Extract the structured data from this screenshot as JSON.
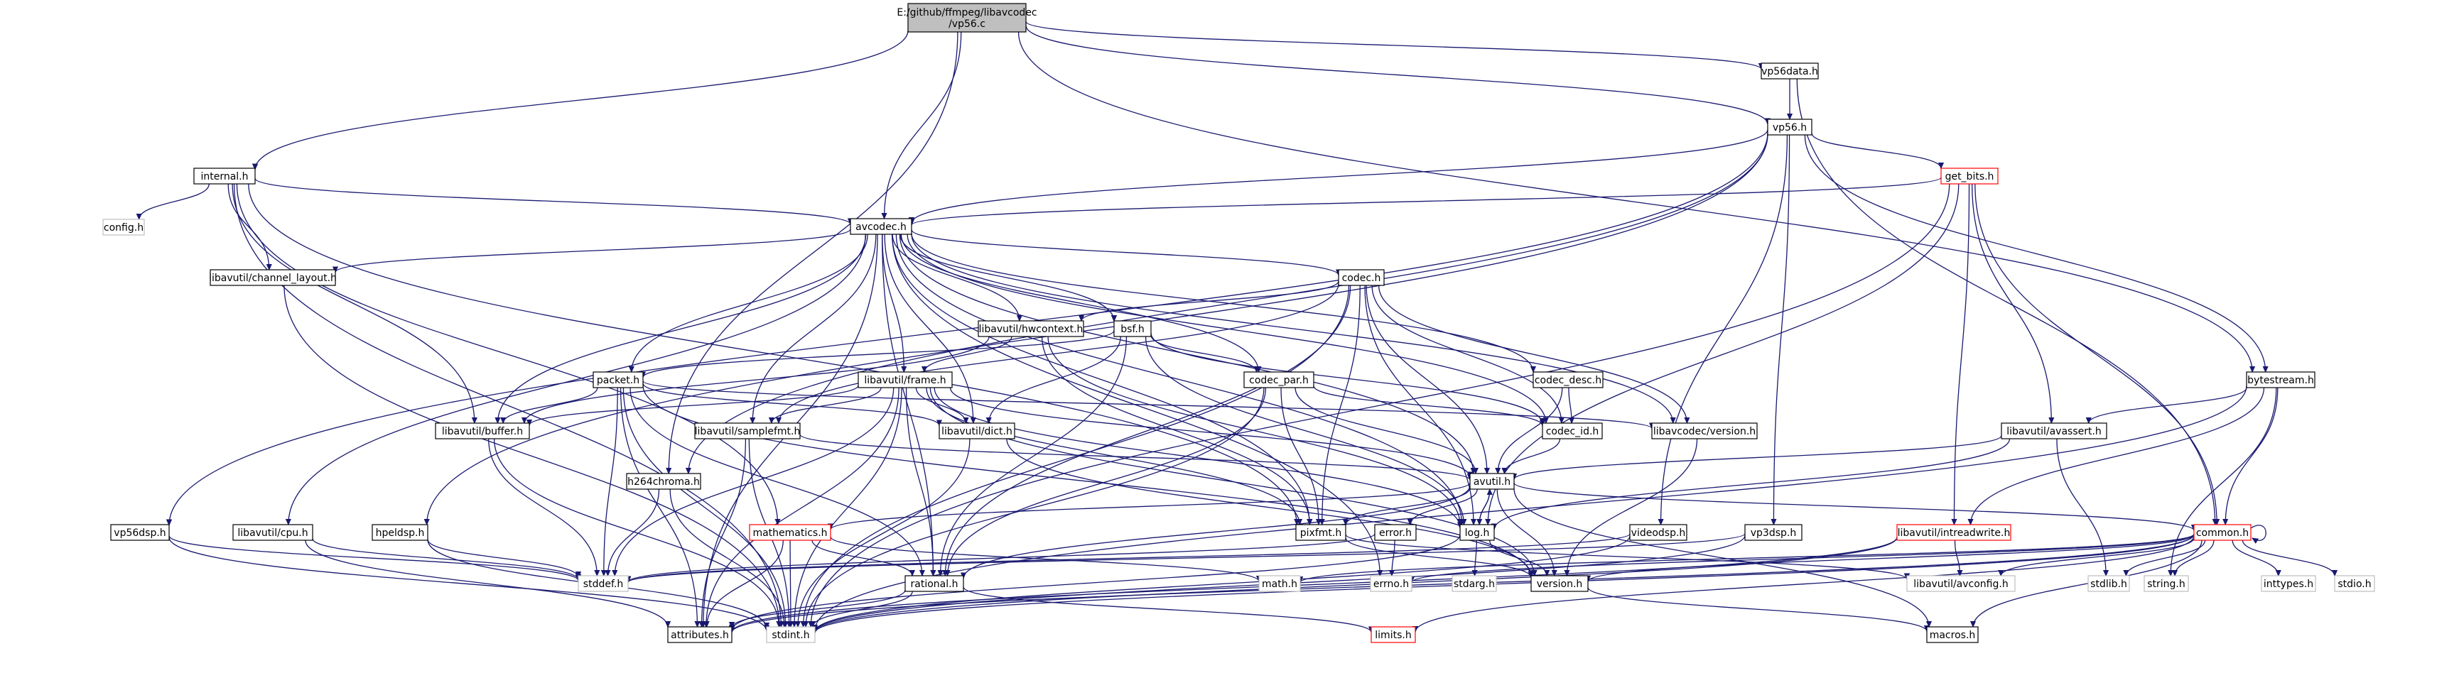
{
  "palette": {
    "edge": "#191970",
    "node_border": "#000000",
    "node_fill": "#ffffff",
    "root_fill": "#bfbfbf",
    "truncated_border": "#ff0000",
    "system_border": "#bfbfbf",
    "text": "#000000"
  },
  "nodes": [
    {
      "id": "root",
      "kind": "root",
      "label": "E:/github/ffmpeg/libavcodec\n/vp56.c"
    },
    {
      "id": "vp56data",
      "kind": "file",
      "label": "vp56data.h"
    },
    {
      "id": "vp56",
      "kind": "file",
      "label": "vp56.h"
    },
    {
      "id": "internal",
      "kind": "file",
      "label": "internal.h"
    },
    {
      "id": "get_bits",
      "kind": "truncated",
      "label": "get_bits.h"
    },
    {
      "id": "config",
      "kind": "system",
      "label": "config.h"
    },
    {
      "id": "avcodec",
      "kind": "file",
      "label": "avcodec.h"
    },
    {
      "id": "channel_layout",
      "kind": "file",
      "label": "libavutil/channel_layout.h"
    },
    {
      "id": "codec",
      "kind": "file",
      "label": "codec.h"
    },
    {
      "id": "hwcontext",
      "kind": "file",
      "label": "libavutil/hwcontext.h"
    },
    {
      "id": "bsf",
      "kind": "file",
      "label": "bsf.h"
    },
    {
      "id": "bytestream",
      "kind": "file",
      "label": "bytestream.h"
    },
    {
      "id": "packet",
      "kind": "file",
      "label": "packet.h"
    },
    {
      "id": "frame",
      "kind": "file",
      "label": "libavutil/frame.h"
    },
    {
      "id": "codec_par",
      "kind": "file",
      "label": "codec_par.h"
    },
    {
      "id": "codec_desc",
      "kind": "file",
      "label": "codec_desc.h"
    },
    {
      "id": "buffer",
      "kind": "file",
      "label": "libavutil/buffer.h"
    },
    {
      "id": "samplefmt",
      "kind": "file",
      "label": "libavutil/samplefmt.h"
    },
    {
      "id": "dict",
      "kind": "file",
      "label": "libavutil/dict.h"
    },
    {
      "id": "codec_id",
      "kind": "file",
      "label": "codec_id.h"
    },
    {
      "id": "version_codec",
      "kind": "file",
      "label": "libavcodec/version.h"
    },
    {
      "id": "avassert",
      "kind": "file",
      "label": "libavutil/avassert.h"
    },
    {
      "id": "h264chroma",
      "kind": "file",
      "label": "h264chroma.h"
    },
    {
      "id": "avutil",
      "kind": "file",
      "label": "avutil.h"
    },
    {
      "id": "vp56dsp",
      "kind": "file",
      "label": "vp56dsp.h"
    },
    {
      "id": "cpu",
      "kind": "file",
      "label": "libavutil/cpu.h"
    },
    {
      "id": "hpeldsp",
      "kind": "file",
      "label": "hpeldsp.h"
    },
    {
      "id": "mathematics",
      "kind": "truncated",
      "label": "mathematics.h"
    },
    {
      "id": "pixfmt",
      "kind": "file",
      "label": "pixfmt.h"
    },
    {
      "id": "error",
      "kind": "file",
      "label": "error.h"
    },
    {
      "id": "log",
      "kind": "file",
      "label": "log.h"
    },
    {
      "id": "videodsp",
      "kind": "file",
      "label": "videodsp.h"
    },
    {
      "id": "vp3dsp",
      "kind": "file",
      "label": "vp3dsp.h"
    },
    {
      "id": "intreadwrite",
      "kind": "truncated",
      "label": "libavutil/intreadwrite.h"
    },
    {
      "id": "common",
      "kind": "truncated",
      "label": "common.h"
    },
    {
      "id": "stddef",
      "kind": "system",
      "label": "stddef.h"
    },
    {
      "id": "rational",
      "kind": "file",
      "label": "rational.h"
    },
    {
      "id": "math",
      "kind": "system",
      "label": "math.h"
    },
    {
      "id": "errno",
      "kind": "system",
      "label": "errno.h"
    },
    {
      "id": "stdarg",
      "kind": "system",
      "label": "stdarg.h"
    },
    {
      "id": "version_util",
      "kind": "file",
      "label": "version.h"
    },
    {
      "id": "avconfig",
      "kind": "system",
      "label": "libavutil/avconfig.h"
    },
    {
      "id": "stdlib",
      "kind": "system",
      "label": "stdlib.h"
    },
    {
      "id": "string",
      "kind": "system",
      "label": "string.h"
    },
    {
      "id": "inttypes",
      "kind": "system",
      "label": "inttypes.h"
    },
    {
      "id": "stdio",
      "kind": "system",
      "label": "stdio.h"
    },
    {
      "id": "attributes",
      "kind": "file",
      "label": "attributes.h"
    },
    {
      "id": "stdint",
      "kind": "system",
      "label": "stdint.h"
    },
    {
      "id": "limits",
      "kind": "truncated",
      "label": "limits.h"
    },
    {
      "id": "macros",
      "kind": "file",
      "label": "macros.h"
    }
  ],
  "edges": [
    [
      "root",
      "internal"
    ],
    [
      "root",
      "avcodec"
    ],
    [
      "root",
      "vp56"
    ],
    [
      "root",
      "vp56data"
    ],
    [
      "root",
      "bytestream"
    ],
    [
      "root",
      "h264chroma"
    ],
    [
      "vp56data",
      "vp56"
    ],
    [
      "vp56data",
      "common"
    ],
    [
      "vp56",
      "avcodec"
    ],
    [
      "vp56",
      "get_bits"
    ],
    [
      "vp56",
      "bytestream"
    ],
    [
      "vp56",
      "hpeldsp"
    ],
    [
      "vp56",
      "vp56dsp"
    ],
    [
      "vp56",
      "h264chroma"
    ],
    [
      "vp56",
      "videodsp"
    ],
    [
      "vp56",
      "vp3dsp"
    ],
    [
      "internal",
      "config"
    ],
    [
      "internal",
      "avcodec"
    ],
    [
      "internal",
      "channel_layout"
    ],
    [
      "internal",
      "buffer"
    ],
    [
      "internal",
      "mathematics"
    ],
    [
      "internal",
      "pixfmt"
    ],
    [
      "internal",
      "stdint"
    ],
    [
      "get_bits",
      "avcodec"
    ],
    [
      "get_bits",
      "common"
    ],
    [
      "get_bits",
      "intreadwrite"
    ],
    [
      "get_bits",
      "avassert"
    ],
    [
      "get_bits",
      "log"
    ],
    [
      "get_bits",
      "stdint"
    ],
    [
      "avcodec",
      "channel_layout"
    ],
    [
      "avcodec",
      "codec"
    ],
    [
      "avcodec",
      "hwcontext"
    ],
    [
      "avcodec",
      "bsf"
    ],
    [
      "avcodec",
      "packet"
    ],
    [
      "avcodec",
      "frame"
    ],
    [
      "avcodec",
      "codec_par"
    ],
    [
      "avcodec",
      "codec_desc"
    ],
    [
      "avcodec",
      "buffer"
    ],
    [
      "avcodec",
      "samplefmt"
    ],
    [
      "avcodec",
      "dict"
    ],
    [
      "avcodec",
      "codec_id"
    ],
    [
      "avcodec",
      "version_codec"
    ],
    [
      "avcodec",
      "avutil"
    ],
    [
      "avcodec",
      "log"
    ],
    [
      "avcodec",
      "pixfmt"
    ],
    [
      "avcodec",
      "rational"
    ],
    [
      "avcodec",
      "attributes"
    ],
    [
      "avcodec",
      "cpu"
    ],
    [
      "avcodec",
      "errno"
    ],
    [
      "channel_layout",
      "stdint"
    ],
    [
      "codec",
      "hwcontext"
    ],
    [
      "codec",
      "codec_id"
    ],
    [
      "codec",
      "version_codec"
    ],
    [
      "codec",
      "avutil"
    ],
    [
      "codec",
      "log"
    ],
    [
      "codec",
      "pixfmt"
    ],
    [
      "codec",
      "rational"
    ],
    [
      "codec",
      "samplefmt"
    ],
    [
      "codec",
      "stdint"
    ],
    [
      "hwcontext",
      "buffer"
    ],
    [
      "hwcontext",
      "frame"
    ],
    [
      "hwcontext",
      "log"
    ],
    [
      "hwcontext",
      "pixfmt"
    ],
    [
      "bsf",
      "packet"
    ],
    [
      "bsf",
      "codec_par"
    ],
    [
      "bsf",
      "codec_id"
    ],
    [
      "bsf",
      "dict"
    ],
    [
      "bsf",
      "log"
    ],
    [
      "bsf",
      "rational"
    ],
    [
      "bytestream",
      "avassert"
    ],
    [
      "bytestream",
      "common"
    ],
    [
      "bytestream",
      "intreadwrite"
    ],
    [
      "bytestream",
      "string"
    ],
    [
      "bytestream",
      "stdint"
    ],
    [
      "packet",
      "buffer"
    ],
    [
      "packet",
      "dict"
    ],
    [
      "packet",
      "rational"
    ],
    [
      "packet",
      "version_codec"
    ],
    [
      "packet",
      "attributes"
    ],
    [
      "packet",
      "stddef"
    ],
    [
      "packet",
      "stdint"
    ],
    [
      "packet",
      "version_util"
    ],
    [
      "frame",
      "buffer"
    ],
    [
      "frame",
      "samplefmt"
    ],
    [
      "frame",
      "dict"
    ],
    [
      "frame",
      "avutil"
    ],
    [
      "frame",
      "rational"
    ],
    [
      "frame",
      "pixfmt"
    ],
    [
      "frame",
      "log"
    ],
    [
      "frame",
      "attributes"
    ],
    [
      "frame",
      "stddef"
    ],
    [
      "frame",
      "stdint"
    ],
    [
      "frame",
      "version_util"
    ],
    [
      "codec_par",
      "codec_id"
    ],
    [
      "codec_par",
      "avutil"
    ],
    [
      "codec_par",
      "pixfmt"
    ],
    [
      "codec_par",
      "rational"
    ],
    [
      "codec_par",
      "stdint"
    ],
    [
      "codec_desc",
      "codec_id"
    ],
    [
      "codec_desc",
      "avutil"
    ],
    [
      "buffer",
      "stddef"
    ],
    [
      "buffer",
      "stdint"
    ],
    [
      "samplefmt",
      "avutil"
    ],
    [
      "samplefmt",
      "attributes"
    ],
    [
      "samplefmt",
      "stdint"
    ],
    [
      "dict",
      "stdint"
    ],
    [
      "dict",
      "version_util"
    ],
    [
      "codec_id",
      "avutil"
    ],
    [
      "version_codec",
      "version_util"
    ],
    [
      "avassert",
      "avutil"
    ],
    [
      "avassert",
      "log"
    ],
    [
      "avassert",
      "stdlib"
    ],
    [
      "h264chroma",
      "stddef"
    ],
    [
      "h264chroma",
      "stdint"
    ],
    [
      "avutil",
      "common"
    ],
    [
      "avutil",
      "error"
    ],
    [
      "avutil",
      "version_util"
    ],
    [
      "avutil",
      "mathematics"
    ],
    [
      "avutil",
      "rational"
    ],
    [
      "avutil",
      "log"
    ],
    [
      "avutil",
      "pixfmt"
    ],
    [
      "avutil",
      "macros"
    ],
    [
      "vp56dsp",
      "stddef"
    ],
    [
      "vp56dsp",
      "stdint"
    ],
    [
      "cpu",
      "stddef"
    ],
    [
      "cpu",
      "attributes"
    ],
    [
      "hpeldsp",
      "stddef"
    ],
    [
      "hpeldsp",
      "stdint"
    ],
    [
      "mathematics",
      "math"
    ],
    [
      "mathematics",
      "rational"
    ],
    [
      "mathematics",
      "attributes"
    ],
    [
      "mathematics",
      "stdint"
    ],
    [
      "pixfmt",
      "version_util"
    ],
    [
      "pixfmt",
      "avconfig"
    ],
    [
      "error",
      "errno"
    ],
    [
      "error",
      "stddef"
    ],
    [
      "log",
      "avutil"
    ],
    [
      "log",
      "stdarg"
    ],
    [
      "log",
      "version_util"
    ],
    [
      "log",
      "attributes"
    ],
    [
      "videodsp",
      "stddef"
    ],
    [
      "videodsp",
      "stdint"
    ],
    [
      "vp3dsp",
      "stddef"
    ],
    [
      "vp3dsp",
      "stdint"
    ],
    [
      "intreadwrite",
      "avconfig"
    ],
    [
      "intreadwrite",
      "attributes"
    ],
    [
      "intreadwrite",
      "stdint"
    ],
    [
      "intreadwrite",
      "bswap_missing"
    ],
    [
      "common",
      "common"
    ],
    [
      "common",
      "errno"
    ],
    [
      "common",
      "inttypes"
    ],
    [
      "common",
      "limits"
    ],
    [
      "common",
      "math"
    ],
    [
      "common",
      "stdint"
    ],
    [
      "common",
      "stdio"
    ],
    [
      "common",
      "stdlib"
    ],
    [
      "common",
      "string"
    ],
    [
      "common",
      "attributes"
    ],
    [
      "common",
      "macros"
    ],
    [
      "common",
      "version_util"
    ],
    [
      "common",
      "avconfig"
    ],
    [
      "rational",
      "attributes"
    ],
    [
      "rational",
      "stdint"
    ],
    [
      "rational",
      "limits"
    ],
    [
      "version_util",
      "macros"
    ]
  ]
}
